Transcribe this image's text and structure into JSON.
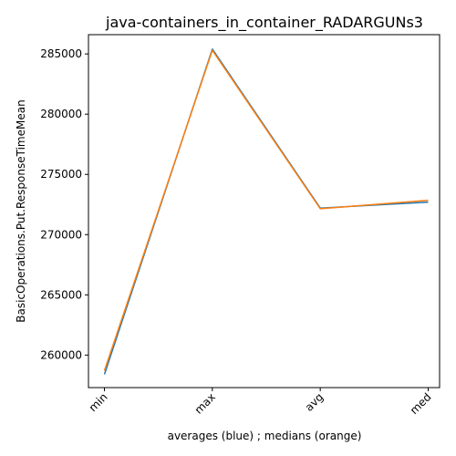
{
  "chart_data": {
    "type": "line",
    "title": "java-containers_in_container_RADARGUNs3",
    "xlabel": "averages (blue) ; medians (orange)",
    "ylabel": "BasicOperations.Put.ResponseTimeMean",
    "categories": [
      "min",
      "max",
      "avg",
      "med"
    ],
    "ylim": [
      257300,
      286600
    ],
    "yticks": [
      260000,
      265000,
      270000,
      275000,
      280000,
      285000
    ],
    "ytick_labels": [
      "260000",
      "265000",
      "270000",
      "275000",
      "280000",
      "285000"
    ],
    "grid": false,
    "series": [
      {
        "values": [
          258400,
          285400,
          272200,
          272700
        ],
        "color": "#1f77b4"
      },
      {
        "values": [
          258700,
          285300,
          272150,
          272850
        ],
        "color": "#ff7f0e"
      }
    ]
  }
}
